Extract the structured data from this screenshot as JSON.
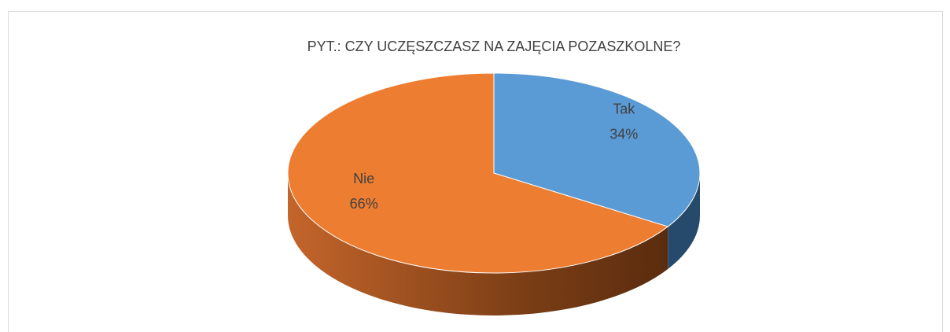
{
  "chart_data": {
    "type": "pie",
    "title": "PYT.: CZY UCZĘSZCZASZ NA ZAJĘCIA POZASZKOLNE?",
    "categories": [
      "Tak",
      "Nie"
    ],
    "values": [
      34,
      66
    ],
    "value_labels": [
      "34%",
      "66%"
    ],
    "colors": [
      "#5b9bd5",
      "#ed7d31"
    ]
  }
}
